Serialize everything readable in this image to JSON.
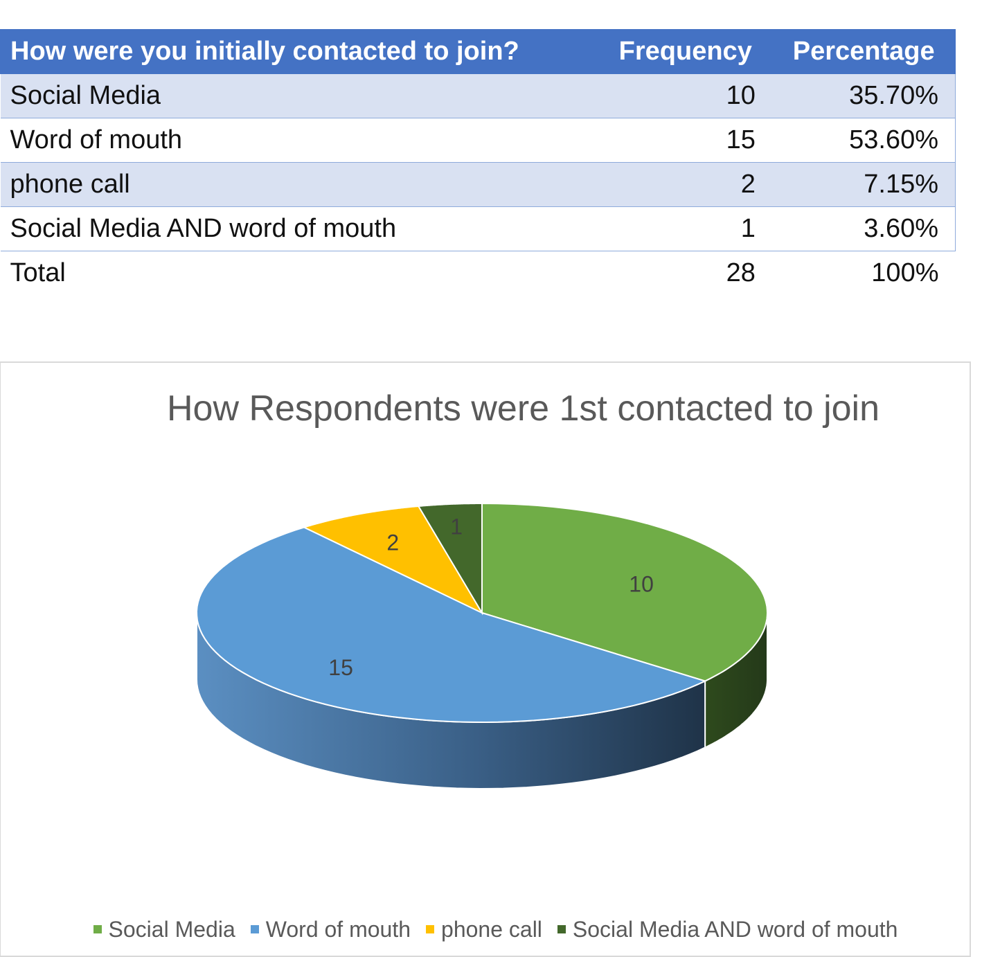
{
  "table": {
    "headers": [
      "How were you initially contacted to join?",
      "Frequency",
      "Percentage"
    ],
    "rows": [
      {
        "label": "Social Media",
        "frequency": "10",
        "percentage": "35.70%"
      },
      {
        "label": "Word of mouth",
        "frequency": "15",
        "percentage": "53.60%"
      },
      {
        "label": "phone call",
        "frequency": "2",
        "percentage": "7.15%"
      },
      {
        "label": "Social Media AND word of mouth",
        "frequency": "1",
        "percentage": "3.60%"
      }
    ],
    "total": {
      "label": "Total",
      "frequency": "28",
      "percentage": "100%"
    }
  },
  "chart_data": {
    "type": "pie",
    "title": "How Respondents were 1st contacted to join",
    "categories": [
      "Social Media",
      "Word of mouth",
      "phone call",
      "Social Media AND word of mouth"
    ],
    "values": [
      10,
      15,
      2,
      1
    ],
    "colors": [
      "#70ad47",
      "#5b9bd5",
      "#ffc000",
      "#43682b"
    ],
    "style": "3d",
    "data_labels": true,
    "legend": "bottom"
  }
}
